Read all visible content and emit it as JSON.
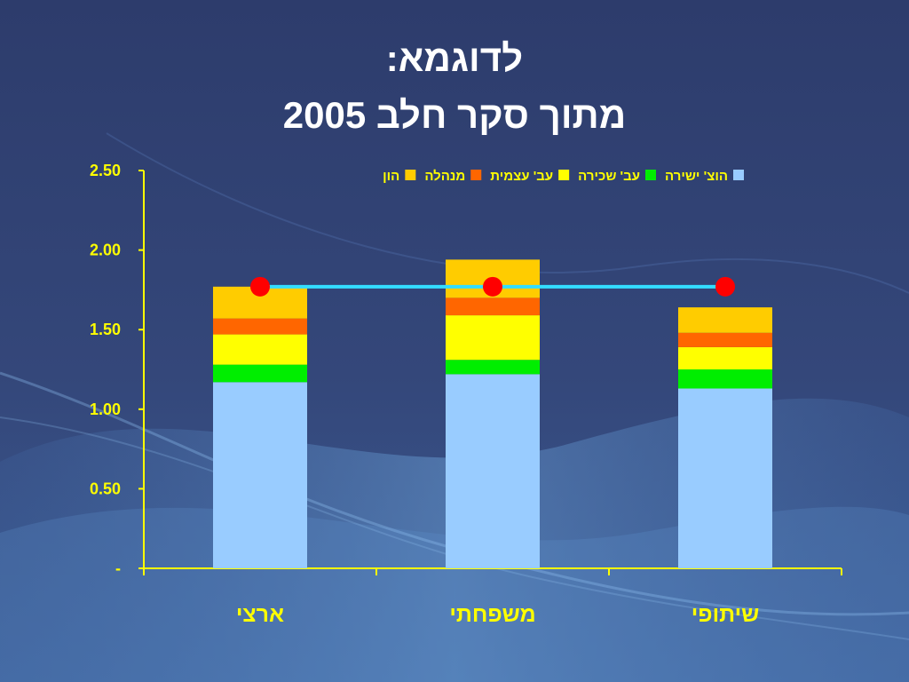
{
  "slide": {
    "title_line1": "לדוגמא:",
    "title_line2": "מתוך סקר חלב 2005"
  },
  "chart_data": {
    "type": "bar",
    "stacked": true,
    "categories": [
      "ארצי",
      "משפחתי",
      "שיתופי"
    ],
    "series": [
      {
        "name": "הוצ' ישירה",
        "color": "#99ccff",
        "values": [
          1.17,
          1.22,
          1.13
        ]
      },
      {
        "name": "עב' שכירה",
        "color": "#00ee00",
        "values": [
          0.11,
          0.09,
          0.12
        ]
      },
      {
        "name": "עב' עצמית",
        "color": "#ffff00",
        "values": [
          0.19,
          0.28,
          0.14
        ]
      },
      {
        "name": "מנהלה",
        "color": "#ff6600",
        "values": [
          0.1,
          0.11,
          0.09
        ]
      },
      {
        "name": "הון",
        "color": "#ffcc00",
        "values": [
          0.2,
          0.24,
          0.16
        ]
      }
    ],
    "line_series": {
      "color": "#33ddff",
      "marker_color": "#ff0000",
      "values": [
        1.77,
        1.77,
        1.77
      ]
    },
    "ylim": [
      0,
      2.5
    ],
    "yticks": [
      0,
      0.5,
      1.0,
      1.5,
      2.0,
      2.5
    ],
    "ytick_labels": [
      "-",
      "0.50",
      "1.00",
      "1.50",
      "2.00",
      "2.50"
    ],
    "legend_position": "top",
    "grid": false,
    "axis_color": "#ffff00"
  }
}
